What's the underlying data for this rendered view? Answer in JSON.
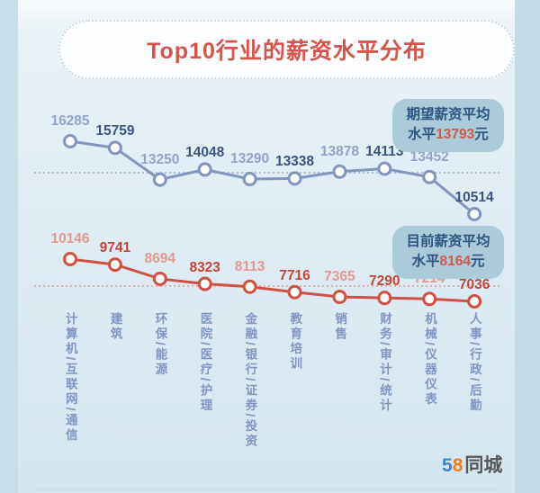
{
  "title": "Top10行业的薪资水平分布",
  "legend": {
    "expected": {
      "line1": "期望薪资平均",
      "line2_prefix": "水平",
      "value": "13793",
      "suffix": "元"
    },
    "current": {
      "line1": "目前薪资平均",
      "line2_prefix": "水平",
      "value": "8164",
      "suffix": "元"
    }
  },
  "logo": {
    "five": "5",
    "eight": "8",
    "name": "同城"
  },
  "colors": {
    "title": "#d7544b",
    "background": "#dfecf4",
    "side_band": "#c8dee9",
    "legend_pill_bg": "#abcbd8",
    "legend_text": "#2d567f",
    "legend_value": "#cd5a4e",
    "category_label": "#8095c2"
  },
  "chart_data": {
    "type": "line",
    "title": "Top10行业的薪资水平分布",
    "categories": [
      "计算机/互联网/通信",
      "建筑",
      "环保/能源",
      "医院/医疗/护理",
      "金融/银行/证券/投资",
      "教育培训",
      "销售",
      "财务/审计/统计",
      "机械/仪器仪表",
      "人事/行政/后勤"
    ],
    "series": [
      {
        "name": "期望薪资",
        "values": [
          16285,
          15759,
          13250,
          14048,
          13290,
          13338,
          13878,
          14113,
          13452,
          10514
        ],
        "average": 13793,
        "line_color": "#8295bc",
        "point_style": "open-circle",
        "label_color_light": "#92a4c8",
        "label_color_dark": "#3b5384",
        "avg_line_color": "#a6b3cc"
      },
      {
        "name": "目前薪资",
        "values": [
          10146,
          9741,
          8694,
          8323,
          8113,
          7716,
          7365,
          7290,
          7214,
          7036
        ],
        "average": 8164,
        "line_color": "#cd5244",
        "point_style": "open-circle",
        "label_color_light": "#e29b91",
        "label_color_dark": "#bf4736",
        "avg_line_color": "#dcaaa1"
      }
    ],
    "grid": false,
    "legend_entries": [
      "期望薪资平均水平13793元",
      "目前薪资平均水平8164元"
    ],
    "legend_position": "right",
    "value_labels": "above-points-alternating-light-dark"
  }
}
